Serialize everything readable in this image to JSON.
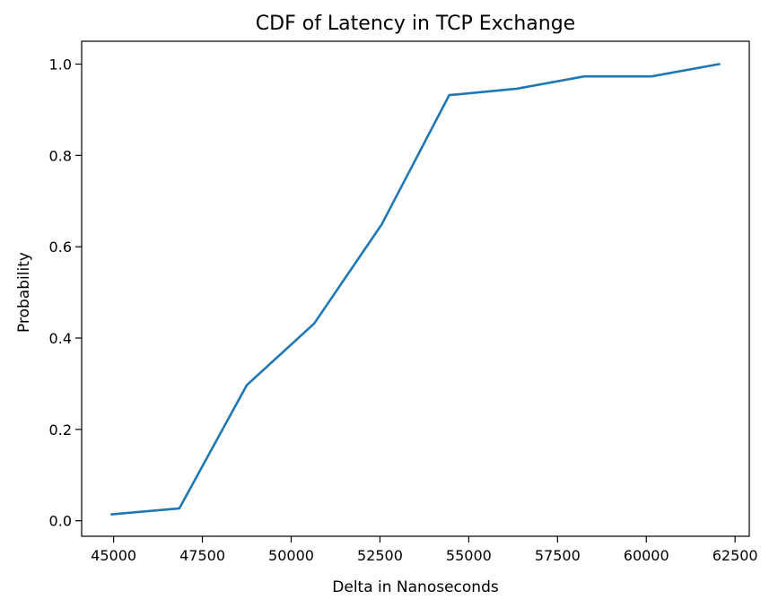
{
  "chart_data": {
    "type": "line",
    "title": "CDF of Latency in TCP Exchange",
    "xlabel": "Delta in Nanoseconds",
    "ylabel": "Probability",
    "xlim": [
      44100,
      62900
    ],
    "ylim": [
      -0.034,
      1.05
    ],
    "grid": false,
    "xticks": [
      45000,
      47500,
      50000,
      52500,
      55000,
      57500,
      60000,
      62500
    ],
    "xtick_labels": [
      "45000",
      "47500",
      "50000",
      "52500",
      "55000",
      "57500",
      "60000",
      "62500"
    ],
    "yticks": [
      0.0,
      0.2,
      0.4,
      0.6,
      0.8,
      1.0
    ],
    "ytick_labels": [
      "0.0",
      "0.2",
      "0.4",
      "0.6",
      "0.8",
      "1.0"
    ],
    "line_color": "#1f77b4",
    "series": [
      {
        "x": [
          44950,
          46850,
          48750,
          50650,
          52550,
          54450,
          56350,
          58250,
          60150,
          62050
        ],
        "y": [
          0.014,
          0.027,
          0.297,
          0.432,
          0.649,
          0.932,
          0.946,
          0.973,
          0.973,
          1.0
        ]
      }
    ]
  }
}
